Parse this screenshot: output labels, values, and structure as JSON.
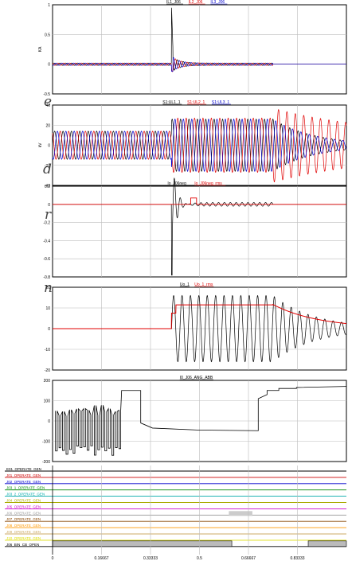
{
  "page": {
    "left_fragments": [
      "e",
      "d",
      "r",
      "n"
    ]
  },
  "chart_data": [
    {
      "type": "line",
      "ylabel": "KA",
      "ylim": [
        -0.5,
        1
      ],
      "yticks": [
        "1",
        "0.5",
        "0",
        "-0.5"
      ],
      "legend": [
        {
          "name": "IL1_J06",
          "color": "#000000"
        },
        {
          "name": "IL2_J06",
          "color": "#e00000"
        },
        {
          "name": "IL3_J06",
          "color": "#0000cc"
        }
      ],
      "series": [
        {
          "name": "IL1_J06",
          "t": [
            0,
            0.4,
            0.405,
            0.41,
            0.45,
            0.5,
            0.6,
            0.75,
            0.7501,
            1
          ],
          "envelope": [
            0.02,
            0.02,
            0.95,
            0.3,
            0.08,
            0.03,
            0.02,
            0.02,
            0,
            0
          ],
          "offset": 0,
          "freq": 50,
          "phase": 0
        }
      ]
    },
    {
      "type": "line",
      "ylabel": "kV",
      "ylim": [
        -40,
        40
      ],
      "yticks": [
        "40",
        "20",
        "0",
        "-20",
        "-40"
      ],
      "legend": [
        {
          "name": "S1:UL1_1",
          "color": "#000000"
        },
        {
          "name": "S1:UL2_1",
          "color": "#e00000"
        },
        {
          "name": "S1:UL3_1",
          "color": "#0000cc"
        }
      ]
    },
    {
      "type": "line",
      "ylim": [
        -0.8,
        0.2
      ],
      "yticks": [
        "0.2",
        "0",
        "-0.2",
        "-0.4",
        "-0.6",
        "-0.8"
      ],
      "legend": [
        {
          "name": "Io_J06neg",
          "color": "#000000"
        },
        {
          "name": "Io_J06neg_rms",
          "color": "#e00000"
        }
      ]
    },
    {
      "type": "line",
      "ylim": [
        -20,
        20
      ],
      "yticks": [
        "20",
        "10",
        "0",
        "-10",
        "-20"
      ],
      "legend": [
        {
          "name": "Uo_1",
          "color": "#000000"
        },
        {
          "name": "Uo_1_rms",
          "color": "#e00000"
        }
      ]
    },
    {
      "type": "line",
      "ylim": [
        -200,
        200
      ],
      "yticks": [
        "200",
        "100",
        "0",
        "-100",
        "-200"
      ],
      "legend": [
        {
          "name": "I0_J06_ANG_ABB",
          "color": "#000000"
        }
      ]
    },
    {
      "type": "digital",
      "channels": [
        {
          "name": "E01_OPERATE_GEN",
          "color": "#000000"
        },
        {
          "name": "J01_OPERATE_GEN",
          "color": "#cc0000"
        },
        {
          "name": "J02_OPERATE_GEN",
          "color": "#0000cc"
        },
        {
          "name": "J03_1_OPERATE_GEN",
          "color": "#008800"
        },
        {
          "name": "J03_2_OPERATE_GEN",
          "color": "#00aaaa"
        },
        {
          "name": "J04_OPERATE_GEN",
          "color": "#aaaa00"
        },
        {
          "name": "J05_OPERATE_GEN",
          "color": "#cc00cc"
        },
        {
          "name": "J06_OPERATE_GEN",
          "color": "#999999"
        },
        {
          "name": "J07_OPERATE_GEN",
          "color": "#884400"
        },
        {
          "name": "J08_OPERATE_GEN",
          "color": "#ff9900"
        },
        {
          "name": "J09_OPERATE_GEN",
          "color": "#ccaa66"
        },
        {
          "name": "J10_OPERATE_GEN",
          "color": "#dddd00"
        },
        {
          "name": "J06_BIN_CB_OPEN",
          "color": "#000000"
        }
      ],
      "active": [
        {
          "channel": "J06_OPERATE_GEN",
          "from": 0.6,
          "to": 0.68
        },
        {
          "channel": "J06_BIN_CB_OPEN",
          "from": 0,
          "to": 0.61
        },
        {
          "channel": "J06_BIN_CB_OPEN",
          "from": 0.87,
          "to": 1
        }
      ]
    }
  ],
  "xaxis": {
    "ticks": [
      "0",
      "0.16667",
      "0.33333",
      "0.5",
      "0.66667",
      "0.83333"
    ],
    "values": [
      0,
      0.16667,
      0.33333,
      0.5,
      0.66667,
      0.83333
    ],
    "xlim": [
      0,
      1
    ]
  }
}
